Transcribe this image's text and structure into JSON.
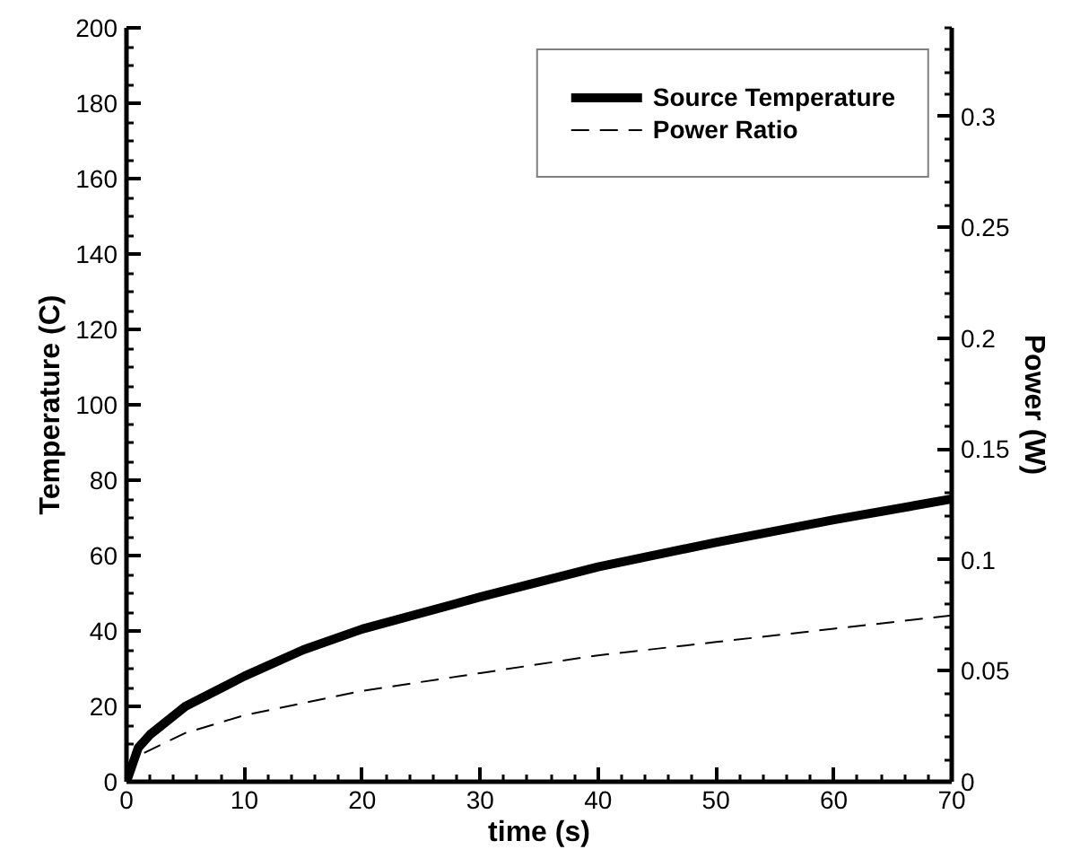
{
  "chart_data": {
    "type": "line",
    "xlabel": "time (s)",
    "ylabel": "Temperature (C)",
    "y2label": "Power (W)",
    "xlim": [
      0,
      70
    ],
    "xticks": [
      0,
      10,
      20,
      30,
      40,
      50,
      60,
      70
    ],
    "ylim": [
      0,
      200
    ],
    "yticks": [
      0,
      20,
      40,
      60,
      80,
      100,
      120,
      140,
      160,
      180,
      200
    ],
    "y2lim": [
      0,
      0.34
    ],
    "y2ticks": [
      0,
      0.05,
      0.1,
      0.15,
      0.2,
      0.25,
      0.3
    ],
    "grid": false,
    "legend": "top right",
    "marker": "none",
    "series": [
      {
        "name": "Source Temperature",
        "color": "#000000",
        "line_style": "solid",
        "x": [
          0,
          1,
          2,
          5,
          10,
          15,
          20,
          30,
          40,
          50,
          60,
          70
        ],
        "values": [
          0,
          9,
          12.5,
          20,
          28,
          35,
          40.5,
          49,
          57,
          63.5,
          69.5,
          75
        ]
      },
      {
        "name": "Power Ratio",
        "color": "#000000",
        "line_style": "dashed",
        "axis": "y2",
        "x": [
          1.5,
          5,
          10,
          20,
          30,
          40,
          50,
          60,
          70
        ],
        "values": [
          0.013,
          0.022,
          0.03,
          0.041,
          0.049,
          0.057,
          0.063,
          0.069,
          0.075
        ]
      }
    ]
  }
}
